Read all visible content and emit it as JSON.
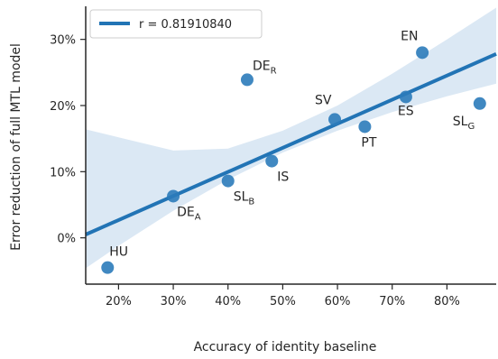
{
  "chart_data": {
    "type": "scatter",
    "xlabel": "Accuracy of identity baseline",
    "ylabel": "Error reduction of full MTL model",
    "xlim": [
      14,
      89
    ],
    "ylim": [
      -7,
      35
    ],
    "x_ticks": [
      20,
      30,
      40,
      50,
      60,
      70,
      80
    ],
    "y_ticks": [
      0,
      10,
      20,
      30
    ],
    "x_tick_labels": [
      "20%",
      "30%",
      "40%",
      "50%",
      "60%",
      "70%",
      "80%"
    ],
    "y_tick_labels": [
      "0%",
      "10%",
      "20%",
      "30%"
    ],
    "legend": {
      "label": "r = 0.81910840",
      "placement": "top-left"
    },
    "regression": {
      "x_range": [
        14,
        89
      ],
      "y_at_start": 0.5,
      "y_at_end": 27.8
    },
    "confidence_band": [
      {
        "x": 14,
        "lower": -4.6,
        "upper": 16.4
      },
      {
        "x": 20,
        "lower": -1.2,
        "upper": 15.2
      },
      {
        "x": 30,
        "lower": 4.1,
        "upper": 13.2
      },
      {
        "x": 40,
        "lower": 8.8,
        "upper": 13.5
      },
      {
        "x": 50,
        "lower": 12.9,
        "upper": 16.2
      },
      {
        "x": 60,
        "lower": 16.2,
        "upper": 20.0
      },
      {
        "x": 70,
        "lower": 19.0,
        "upper": 24.8
      },
      {
        "x": 80,
        "lower": 21.4,
        "upper": 30.0
      },
      {
        "x": 89,
        "lower": 23.3,
        "upper": 34.8
      }
    ],
    "points": [
      {
        "label": "HU",
        "sub": "",
        "x": 18,
        "y": -4.5
      },
      {
        "label": "DE",
        "sub": "A",
        "x": 30,
        "y": 6.3
      },
      {
        "label": "SL",
        "sub": "B",
        "x": 40,
        "y": 8.6
      },
      {
        "label": "IS",
        "sub": "",
        "x": 48,
        "y": 11.6
      },
      {
        "label": "DE",
        "sub": "R",
        "x": 43.5,
        "y": 23.9
      },
      {
        "label": "SV",
        "sub": "",
        "x": 59.5,
        "y": 17.9
      },
      {
        "label": "PT",
        "sub": "",
        "x": 65,
        "y": 16.8
      },
      {
        "label": "ES",
        "sub": "",
        "x": 72.5,
        "y": 21.3
      },
      {
        "label": "EN",
        "sub": "",
        "x": 75.5,
        "y": 28.0
      },
      {
        "label": "SL",
        "sub": "G",
        "x": 86,
        "y": 20.3
      }
    ],
    "grid": false,
    "colors": {
      "points": "#2b7bba",
      "line": "#2274b5",
      "band": "#dbe8f4",
      "axis": "#262626"
    }
  }
}
